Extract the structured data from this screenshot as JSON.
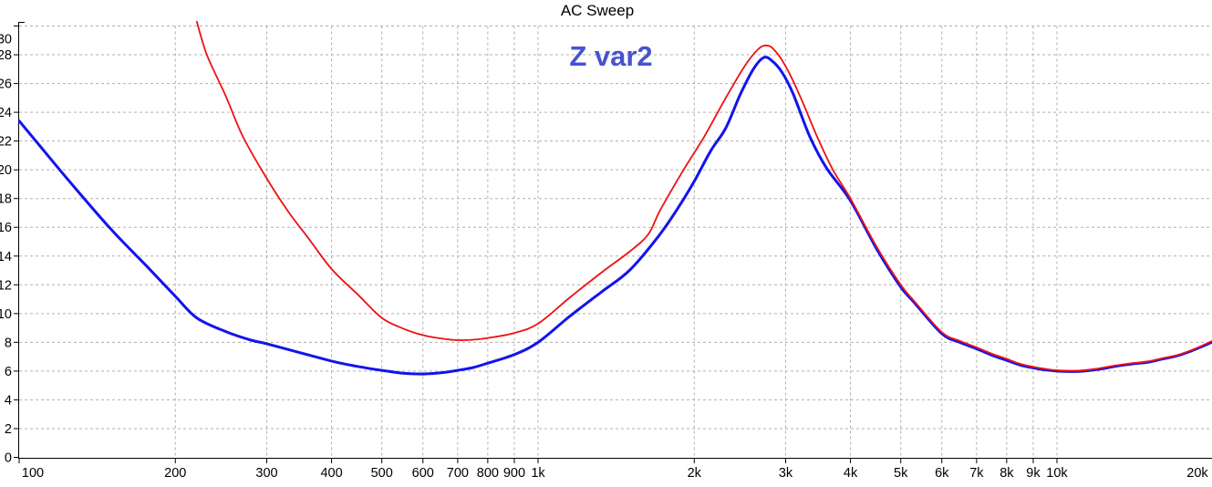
{
  "title": "AC Sweep",
  "annotation": {
    "text": "Z var2",
    "color": "#4753cf"
  },
  "chart_data": {
    "type": "line",
    "title": "AC Sweep",
    "xlabel": "",
    "ylabel": "",
    "x_scale": "log",
    "xlim": [
      100,
      20000
    ],
    "ylim": [
      0,
      30
    ],
    "grid": true,
    "grid_color": "#b0b0b0",
    "axis_color": "#000000",
    "x_ticks": [
      {
        "value": 100,
        "label": "100"
      },
      {
        "value": 200,
        "label": "200"
      },
      {
        "value": 300,
        "label": "300"
      },
      {
        "value": 400,
        "label": "400"
      },
      {
        "value": 500,
        "label": "500"
      },
      {
        "value": 600,
        "label": "600"
      },
      {
        "value": 700,
        "label": "700"
      },
      {
        "value": 800,
        "label": "800"
      },
      {
        "value": 900,
        "label": "900"
      },
      {
        "value": 1000,
        "label": "1k"
      },
      {
        "value": 2000,
        "label": "2k"
      },
      {
        "value": 3000,
        "label": "3k"
      },
      {
        "value": 4000,
        "label": "4k"
      },
      {
        "value": 5000,
        "label": "5k"
      },
      {
        "value": 6000,
        "label": "6k"
      },
      {
        "value": 7000,
        "label": "7k"
      },
      {
        "value": 8000,
        "label": "8k"
      },
      {
        "value": 9000,
        "label": "9k"
      },
      {
        "value": 10000,
        "label": "10k"
      },
      {
        "value": 20000,
        "label": "20k"
      }
    ],
    "y_ticks": [
      {
        "value": 0,
        "label": "0"
      },
      {
        "value": 2,
        "label": "2"
      },
      {
        "value": 4,
        "label": "4"
      },
      {
        "value": 6,
        "label": "6"
      },
      {
        "value": 8,
        "label": "8"
      },
      {
        "value": 10,
        "label": "10"
      },
      {
        "value": 12,
        "label": "12"
      },
      {
        "value": 14,
        "label": "14"
      },
      {
        "value": 16,
        "label": "16"
      },
      {
        "value": 18,
        "label": "18"
      },
      {
        "value": 20,
        "label": "20"
      },
      {
        "value": 22,
        "label": "22"
      },
      {
        "value": 24,
        "label": "24"
      },
      {
        "value": 26,
        "label": "26"
      },
      {
        "value": 28,
        "label": "28"
      },
      {
        "value": 30,
        "label": "30"
      }
    ],
    "series": [
      {
        "id": "blue",
        "color": "#1313ee",
        "width": 3,
        "points": [
          [
            100,
            23.4
          ],
          [
            110,
            21.6
          ],
          [
            125,
            19.2
          ],
          [
            150,
            15.9
          ],
          [
            175,
            13.4
          ],
          [
            200,
            11.2
          ],
          [
            220,
            9.7
          ],
          [
            250,
            8.75
          ],
          [
            280,
            8.15
          ],
          [
            300,
            7.9
          ],
          [
            350,
            7.25
          ],
          [
            400,
            6.7
          ],
          [
            430,
            6.45
          ],
          [
            470,
            6.2
          ],
          [
            500,
            6.05
          ],
          [
            550,
            5.85
          ],
          [
            600,
            5.8
          ],
          [
            650,
            5.88
          ],
          [
            700,
            6.05
          ],
          [
            750,
            6.25
          ],
          [
            800,
            6.55
          ],
          [
            900,
            7.15
          ],
          [
            1000,
            8.0
          ],
          [
            1150,
            9.8
          ],
          [
            1330,
            11.55
          ],
          [
            1500,
            13.0
          ],
          [
            1700,
            15.3
          ],
          [
            1850,
            17.2
          ],
          [
            2000,
            19.2
          ],
          [
            2150,
            21.3
          ],
          [
            2300,
            22.9
          ],
          [
            2450,
            25.2
          ],
          [
            2600,
            27.0
          ],
          [
            2720,
            27.8
          ],
          [
            2820,
            27.6
          ],
          [
            2950,
            26.8
          ],
          [
            3100,
            25.3
          ],
          [
            3340,
            22.3
          ],
          [
            3600,
            20.1
          ],
          [
            4000,
            17.85
          ],
          [
            4500,
            14.45
          ],
          [
            5000,
            11.85
          ],
          [
            5300,
            10.8
          ],
          [
            6000,
            8.6
          ],
          [
            6500,
            8.0
          ],
          [
            7000,
            7.55
          ],
          [
            7500,
            7.1
          ],
          [
            8000,
            6.75
          ],
          [
            8500,
            6.42
          ],
          [
            9000,
            6.22
          ],
          [
            9500,
            6.08
          ],
          [
            10000,
            6.0
          ],
          [
            11000,
            5.98
          ],
          [
            12000,
            6.12
          ],
          [
            13000,
            6.34
          ],
          [
            14000,
            6.5
          ],
          [
            15000,
            6.62
          ],
          [
            16000,
            6.85
          ],
          [
            17000,
            7.05
          ],
          [
            18000,
            7.35
          ],
          [
            19000,
            7.7
          ],
          [
            20000,
            8.05
          ]
        ]
      },
      {
        "id": "red",
        "color": "#ee1111",
        "width": 1.8,
        "points": [
          [
            220,
            30.3
          ],
          [
            230,
            28.0
          ],
          [
            250,
            25.15
          ],
          [
            270,
            22.3
          ],
          [
            300,
            19.4
          ],
          [
            330,
            17.1
          ],
          [
            360,
            15.3
          ],
          [
            400,
            13.1
          ],
          [
            450,
            11.3
          ],
          [
            500,
            9.7
          ],
          [
            550,
            8.95
          ],
          [
            600,
            8.5
          ],
          [
            650,
            8.27
          ],
          [
            700,
            8.15
          ],
          [
            750,
            8.18
          ],
          [
            800,
            8.3
          ],
          [
            900,
            8.65
          ],
          [
            1000,
            9.3
          ],
          [
            1150,
            11.1
          ],
          [
            1330,
            12.9
          ],
          [
            1500,
            14.3
          ],
          [
            1630,
            15.5
          ],
          [
            1720,
            17.2
          ],
          [
            1900,
            19.9
          ],
          [
            2090,
            22.3
          ],
          [
            2300,
            25.0
          ],
          [
            2500,
            27.2
          ],
          [
            2650,
            28.35
          ],
          [
            2750,
            28.65
          ],
          [
            2850,
            28.35
          ],
          [
            3000,
            27.2
          ],
          [
            3200,
            25.1
          ],
          [
            3450,
            22.3
          ],
          [
            3700,
            20.0
          ],
          [
            4000,
            18.0
          ],
          [
            4500,
            14.6
          ],
          [
            5000,
            12.0
          ],
          [
            5300,
            10.9
          ],
          [
            6000,
            8.7
          ],
          [
            6500,
            8.1
          ],
          [
            7000,
            7.65
          ],
          [
            7500,
            7.2
          ],
          [
            8000,
            6.85
          ],
          [
            8500,
            6.5
          ],
          [
            9000,
            6.3
          ],
          [
            9500,
            6.15
          ],
          [
            10000,
            6.06
          ],
          [
            11000,
            6.03
          ],
          [
            12000,
            6.18
          ],
          [
            13000,
            6.4
          ],
          [
            14000,
            6.55
          ],
          [
            15000,
            6.68
          ],
          [
            16000,
            6.9
          ],
          [
            17000,
            7.1
          ],
          [
            18000,
            7.4
          ],
          [
            19000,
            7.75
          ],
          [
            20000,
            8.13
          ]
        ]
      }
    ]
  }
}
